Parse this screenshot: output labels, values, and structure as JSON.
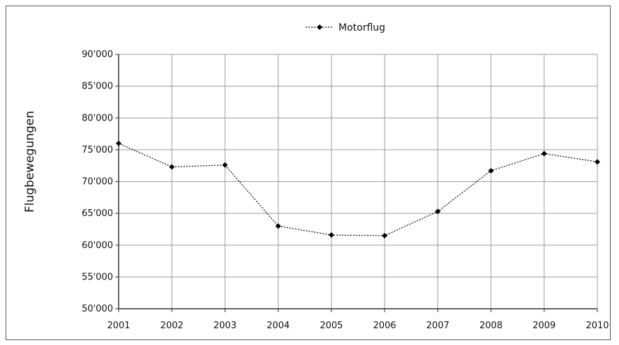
{
  "chart_data": {
    "type": "line",
    "x": [
      2001,
      2002,
      2003,
      2004,
      2005,
      2006,
      2007,
      2008,
      2009,
      2010
    ],
    "series": [
      {
        "name": "Motorflug",
        "values": [
          76000,
          72300,
          72600,
          63000,
          61600,
          61500,
          65300,
          71700,
          74400,
          73100
        ]
      }
    ],
    "ylabel": "Flugbewegungen",
    "xlim": [
      2001,
      2010
    ],
    "ylim": [
      50000,
      90000
    ],
    "y_ticks": [
      50000,
      55000,
      60000,
      65000,
      70000,
      75000,
      80000,
      85000,
      90000
    ],
    "y_tick_labels": [
      "50'000",
      "55'000",
      "60'000",
      "65'000",
      "70'000",
      "75'000",
      "80'000",
      "85'000",
      "90'000"
    ],
    "x_tick_labels": [
      "2001",
      "2002",
      "2003",
      "2004",
      "2005",
      "2006",
      "2007",
      "2008",
      "2009",
      "2010"
    ],
    "grid": true,
    "legend_position": "top-center",
    "line_style": "dotted",
    "marker": "diamond",
    "color": "#000000"
  }
}
